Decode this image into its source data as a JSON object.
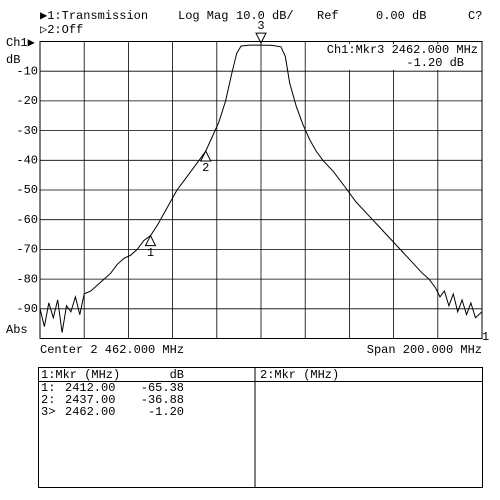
{
  "header": {
    "trace1": "▶1:Transmission",
    "format": "Log Mag",
    "scale": "10.0 dB/",
    "ref_label": "Ref",
    "ref_value": "0.00 dB",
    "status": "C?",
    "trace2": "▷2:Off",
    "channel": "Ch1▶",
    "unit": "dB",
    "abs": "Abs",
    "end_marker": "1"
  },
  "readout": {
    "line1": "Ch1:Mkr3 2462.000 MHz",
    "line2": "-1.20 dB"
  },
  "footer": {
    "center": "Center 2 462.000 MHz",
    "span": "Span 200.000 MHz"
  },
  "chart_data": {
    "type": "line",
    "xlim": [
      2362,
      2562
    ],
    "ylim": [
      -100,
      0
    ],
    "yticks": [
      -10,
      -20,
      -30,
      -40,
      -50,
      -60,
      -70,
      -80,
      -90
    ],
    "grid": true,
    "series": [
      {
        "color": "#000000",
        "x": [
          2362,
          2364,
          2366,
          2368,
          2370,
          2372,
          2374,
          2376,
          2378,
          2380,
          2382,
          2385,
          2388,
          2391,
          2394,
          2397,
          2400,
          2403,
          2406,
          2409,
          2412,
          2415,
          2418,
          2421,
          2424,
          2427,
          2430,
          2433,
          2437,
          2440,
          2443,
          2446,
          2449,
          2451,
          2453,
          2457,
          2462,
          2467,
          2471,
          2473,
          2475,
          2478,
          2481,
          2484,
          2487,
          2490,
          2495,
          2500,
          2505,
          2510,
          2515,
          2520,
          2525,
          2530,
          2535,
          2538,
          2541,
          2543,
          2545,
          2547,
          2549,
          2551,
          2553,
          2555,
          2557,
          2559,
          2562
        ],
        "values": [
          -90,
          -96,
          -88,
          -93,
          -87,
          -98,
          -89,
          -91,
          -86,
          -92,
          -85,
          -84,
          -82,
          -80,
          -78,
          -75,
          -73,
          -72,
          -70,
          -67,
          -65.38,
          -62,
          -58,
          -54,
          -50,
          -47,
          -44,
          -41,
          -36.88,
          -32,
          -27,
          -20,
          -10,
          -4,
          -1.5,
          -1.2,
          -1.2,
          -1.3,
          -1.8,
          -5,
          -14,
          -22,
          -28,
          -33,
          -37,
          -40,
          -44,
          -49,
          -54,
          -58,
          -62,
          -66,
          -70,
          -74,
          -78,
          -80,
          -83,
          -86,
          -84,
          -89,
          -85,
          -91,
          -87,
          -92,
          -88,
          -93,
          -91
        ]
      }
    ],
    "markers": [
      {
        "label": "1",
        "x": 2412,
        "value": -65.38,
        "direction": "up"
      },
      {
        "label": "2",
        "x": 2437,
        "value": -36.88,
        "direction": "up"
      },
      {
        "label": "3",
        "x": 2462,
        "value": -1.2,
        "direction": "down"
      }
    ]
  },
  "table": {
    "left_header": [
      "1:Mkr (MHz)",
      "dB"
    ],
    "right_header": "2:Mkr (MHz)",
    "rows": [
      [
        "1:",
        "2412.00",
        "-65.38"
      ],
      [
        "2:",
        "2437.00",
        "-36.88"
      ],
      [
        "3>",
        "2462.00",
        "-1.20"
      ]
    ]
  }
}
